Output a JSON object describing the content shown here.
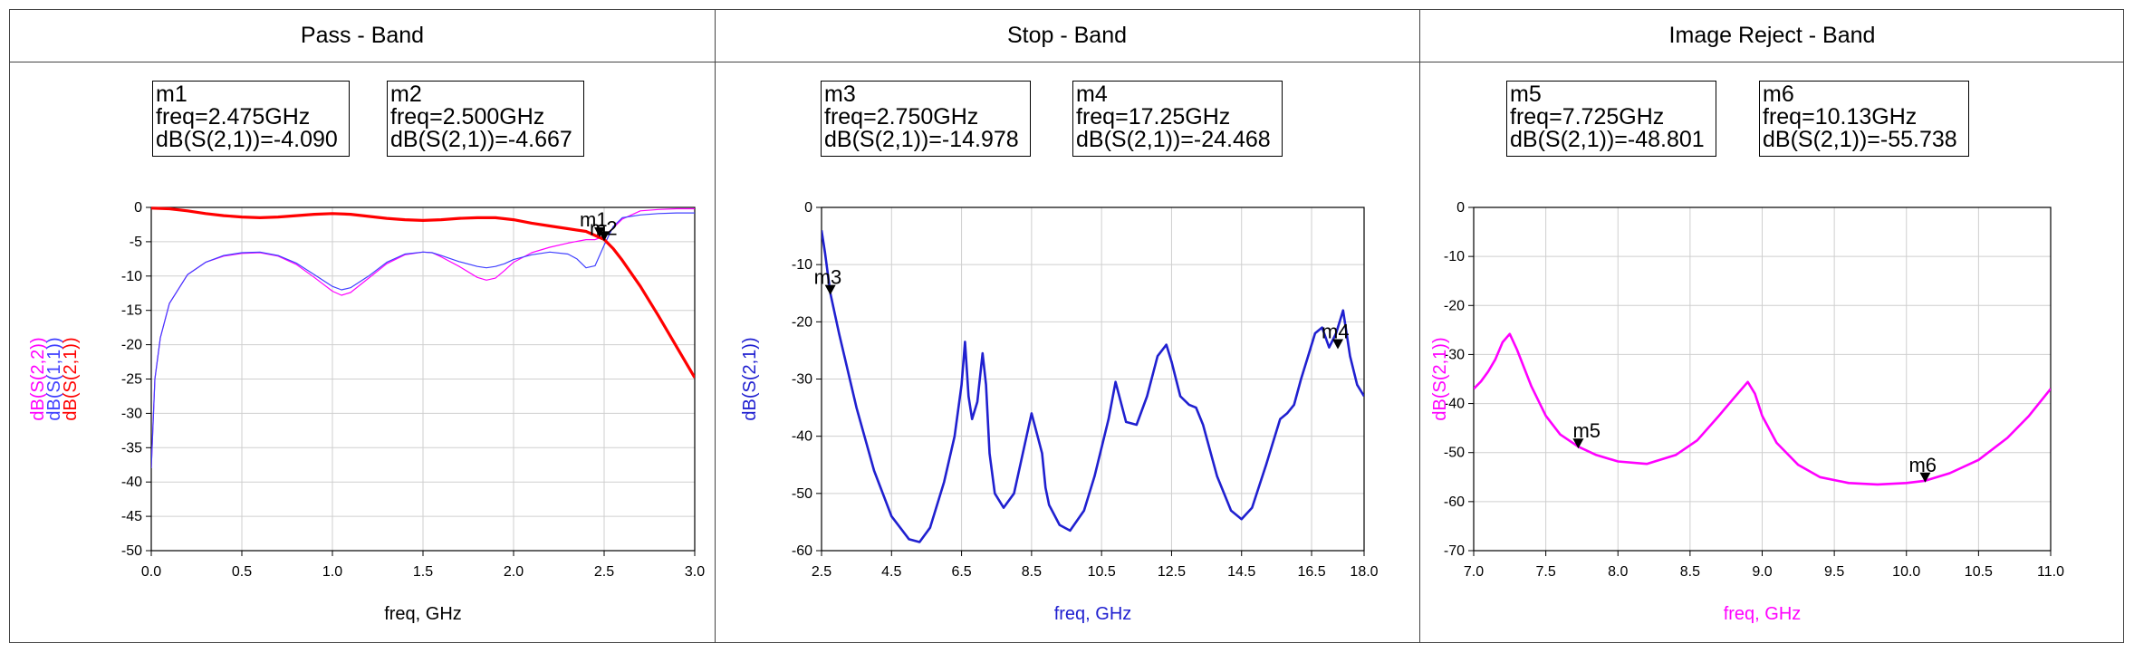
{
  "chart_data": [
    {
      "type": "line",
      "title": "Pass - Band",
      "xlabel": "freq, GHz",
      "ylabels": [
        "dB(S(2,2))",
        "dB(S(1,1))",
        "dB(S(2,1))"
      ],
      "xlim": [
        0.0,
        3.0
      ],
      "ylim": [
        -50,
        0
      ],
      "xticks": [
        "0.0",
        "0.5",
        "1.0",
        "1.5",
        "2.0",
        "2.5",
        "3.0"
      ],
      "yticks": [
        "0",
        "-5",
        "-10",
        "-15",
        "-20",
        "-25",
        "-30",
        "-35",
        "-40",
        "-45",
        "-50"
      ],
      "grid": true,
      "series": [
        {
          "name": "dB(S(2,2))",
          "color": "#ff00ff",
          "x": [
            0.0,
            0.02,
            0.05,
            0.1,
            0.2,
            0.3,
            0.4,
            0.5,
            0.6,
            0.7,
            0.8,
            0.9,
            1.0,
            1.05,
            1.1,
            1.2,
            1.3,
            1.4,
            1.5,
            1.55,
            1.6,
            1.7,
            1.8,
            1.85,
            1.9,
            1.95,
            2.0,
            2.1,
            2.2,
            2.3,
            2.4,
            2.45,
            2.5,
            2.55,
            2.6,
            2.7,
            2.8,
            2.9,
            3.0
          ],
          "y": [
            -38,
            -25,
            -19,
            -14,
            -9.8,
            -8,
            -7.1,
            -6.7,
            -6.6,
            -7.1,
            -8.3,
            -10.2,
            -12.2,
            -12.8,
            -12.4,
            -10.3,
            -8.2,
            -6.9,
            -6.5,
            -6.6,
            -7.2,
            -8.6,
            -10.2,
            -10.6,
            -10.3,
            -9.2,
            -8,
            -6.6,
            -5.8,
            -5.2,
            -4.7,
            -4.7,
            -4.2,
            -3,
            -1.7,
            -0.5,
            -0.3,
            -0.2,
            -0.2
          ]
        },
        {
          "name": "dB(S(1,1))",
          "color": "#4040ff",
          "x": [
            0.0,
            0.02,
            0.05,
            0.1,
            0.2,
            0.3,
            0.4,
            0.5,
            0.6,
            0.7,
            0.8,
            0.9,
            1.0,
            1.05,
            1.1,
            1.2,
            1.3,
            1.4,
            1.5,
            1.55,
            1.6,
            1.7,
            1.8,
            1.85,
            1.9,
            1.95,
            2.0,
            2.1,
            2.2,
            2.3,
            2.35,
            2.4,
            2.45,
            2.5,
            2.55,
            2.6,
            2.7,
            2.8,
            2.9,
            3.0
          ],
          "y": [
            -38,
            -25,
            -19,
            -14,
            -9.8,
            -8,
            -7,
            -6.6,
            -6.5,
            -7,
            -8.1,
            -9.8,
            -11.5,
            -12,
            -11.7,
            -10,
            -8,
            -6.8,
            -6.5,
            -6.6,
            -7,
            -7.9,
            -8.6,
            -8.8,
            -8.6,
            -8.2,
            -7.6,
            -6.9,
            -6.5,
            -6.8,
            -7.5,
            -8.8,
            -8.5,
            -5.5,
            -2.8,
            -1.5,
            -1.1,
            -0.9,
            -0.8,
            -0.8
          ]
        },
        {
          "name": "dB(S(2,1))",
          "color": "#ff0000",
          "x": [
            0.0,
            0.1,
            0.2,
            0.3,
            0.4,
            0.5,
            0.6,
            0.7,
            0.8,
            0.9,
            1.0,
            1.1,
            1.2,
            1.3,
            1.4,
            1.5,
            1.6,
            1.7,
            1.8,
            1.9,
            2.0,
            2.1,
            2.2,
            2.3,
            2.4,
            2.45,
            2.5,
            2.55,
            2.6,
            2.7,
            2.8,
            2.9,
            3.0
          ],
          "y": [
            -0.1,
            -0.2,
            -0.5,
            -0.9,
            -1.2,
            -1.4,
            -1.5,
            -1.4,
            -1.2,
            -1.0,
            -0.9,
            -1.0,
            -1.3,
            -1.6,
            -1.8,
            -1.9,
            -1.8,
            -1.6,
            -1.5,
            -1.5,
            -1.8,
            -2.3,
            -2.7,
            -3.1,
            -3.5,
            -4.09,
            -4.667,
            -6,
            -7.7,
            -11.5,
            -15.8,
            -20.3,
            -24.8
          ]
        }
      ],
      "markers": [
        {
          "name": "m1",
          "freq": "2.475GHz",
          "value": "-4.090",
          "x": 2.475,
          "y": -4.09
        },
        {
          "name": "m2",
          "freq": "2.500GHz",
          "value": "-4.667",
          "x": 2.5,
          "y": -4.667
        }
      ]
    },
    {
      "type": "line",
      "title": "Stop - Band",
      "xlabel": "freq, GHz",
      "ylabels": [
        "dB(S(2,1))"
      ],
      "xlim": [
        2.5,
        18.0
      ],
      "ylim": [
        -60,
        0
      ],
      "xticks": [
        "2.5",
        "4.5",
        "6.5",
        "8.5",
        "10.5",
        "12.5",
        "14.5",
        "16.5",
        "18.0"
      ],
      "yticks": [
        "0",
        "-10",
        "-20",
        "-30",
        "-40",
        "-50",
        "-60"
      ],
      "grid": true,
      "series": [
        {
          "name": "dB(S(2,1))",
          "color": "#2020d0",
          "x": [
            2.5,
            2.6,
            2.75,
            3.0,
            3.5,
            4.0,
            4.5,
            5.0,
            5.3,
            5.6,
            6.0,
            6.3,
            6.5,
            6.6,
            6.7,
            6.8,
            6.95,
            7.1,
            7.2,
            7.3,
            7.45,
            7.7,
            8.0,
            8.5,
            8.8,
            8.9,
            9.0,
            9.3,
            9.6,
            10.0,
            10.3,
            10.7,
            10.9,
            11.05,
            11.2,
            11.5,
            11.8,
            12.1,
            12.35,
            12.5,
            12.75,
            13.0,
            13.2,
            13.4,
            13.8,
            14.2,
            14.5,
            14.8,
            15.2,
            15.6,
            15.8,
            16.0,
            16.2,
            16.4,
            16.6,
            16.8,
            17.0,
            17.2,
            17.4,
            17.6,
            17.8,
            18.0
          ],
          "y": [
            -4,
            -8,
            -14.978,
            -22,
            -35,
            -46,
            -54,
            -58,
            -58.5,
            -56,
            -48,
            -40,
            -31,
            -23.5,
            -33,
            -37,
            -34,
            -25.5,
            -31,
            -43,
            -50,
            -52.5,
            -50,
            -36,
            -43,
            -49,
            -52,
            -55.5,
            -56.5,
            -53,
            -47,
            -37,
            -30.5,
            -34,
            -37.5,
            -38,
            -33,
            -26,
            -24,
            -27,
            -33,
            -34.5,
            -35,
            -38,
            -47,
            -53,
            -54.5,
            -52.5,
            -45,
            -37,
            -36,
            -34.5,
            -30,
            -26,
            -22,
            -21,
            -24.468,
            -22,
            -18,
            -26,
            -31,
            -33
          ]
        }
      ],
      "markers": [
        {
          "name": "m3",
          "freq": "2.750GHz",
          "value": "-14.978",
          "x": 2.75,
          "y": -14.978
        },
        {
          "name": "m4",
          "freq": "17.25GHz",
          "value": "-24.468",
          "x": 17.25,
          "y": -24.468
        }
      ]
    },
    {
      "type": "line",
      "title": "Image Reject - Band",
      "xlabel": "freq, GHz",
      "ylabels": [
        "dB(S(2,1))"
      ],
      "xlim": [
        7.0,
        11.0
      ],
      "ylim": [
        -70,
        0
      ],
      "xticks": [
        "7.0",
        "7.5",
        "8.0",
        "8.5",
        "9.0",
        "9.5",
        "10.0",
        "10.5",
        "11.0"
      ],
      "yticks": [
        "0",
        "-10",
        "-20",
        "-30",
        "-40",
        "-50",
        "-60",
        "-70"
      ],
      "grid": true,
      "series": [
        {
          "name": "dB(S(2,1))",
          "color": "#ff00ff",
          "x": [
            7.0,
            7.05,
            7.1,
            7.15,
            7.2,
            7.25,
            7.3,
            7.4,
            7.5,
            7.6,
            7.725,
            7.85,
            8.0,
            8.2,
            8.4,
            8.55,
            8.7,
            8.8,
            8.9,
            8.95,
            9.0,
            9.1,
            9.25,
            9.4,
            9.6,
            9.8,
            10.0,
            10.13,
            10.3,
            10.5,
            10.7,
            10.85,
            11.0
          ],
          "y": [
            -37,
            -35.5,
            -33.5,
            -31,
            -27.5,
            -25.8,
            -29,
            -36.5,
            -42.5,
            -46.3,
            -48.801,
            -50.5,
            -51.8,
            -52.3,
            -50.5,
            -47.5,
            -42.5,
            -39,
            -35.6,
            -38,
            -42.5,
            -48,
            -52.5,
            -55,
            -56.2,
            -56.5,
            -56.2,
            -55.738,
            -54.2,
            -51.5,
            -47,
            -42.5,
            -37
          ]
        }
      ],
      "markers": [
        {
          "name": "m5",
          "freq": "7.725GHz",
          "value": "-48.801",
          "x": 7.725,
          "y": -48.801
        },
        {
          "name": "m6",
          "freq": "10.13GHz",
          "value": "-55.738",
          "x": 10.13,
          "y": -55.738
        }
      ]
    }
  ]
}
